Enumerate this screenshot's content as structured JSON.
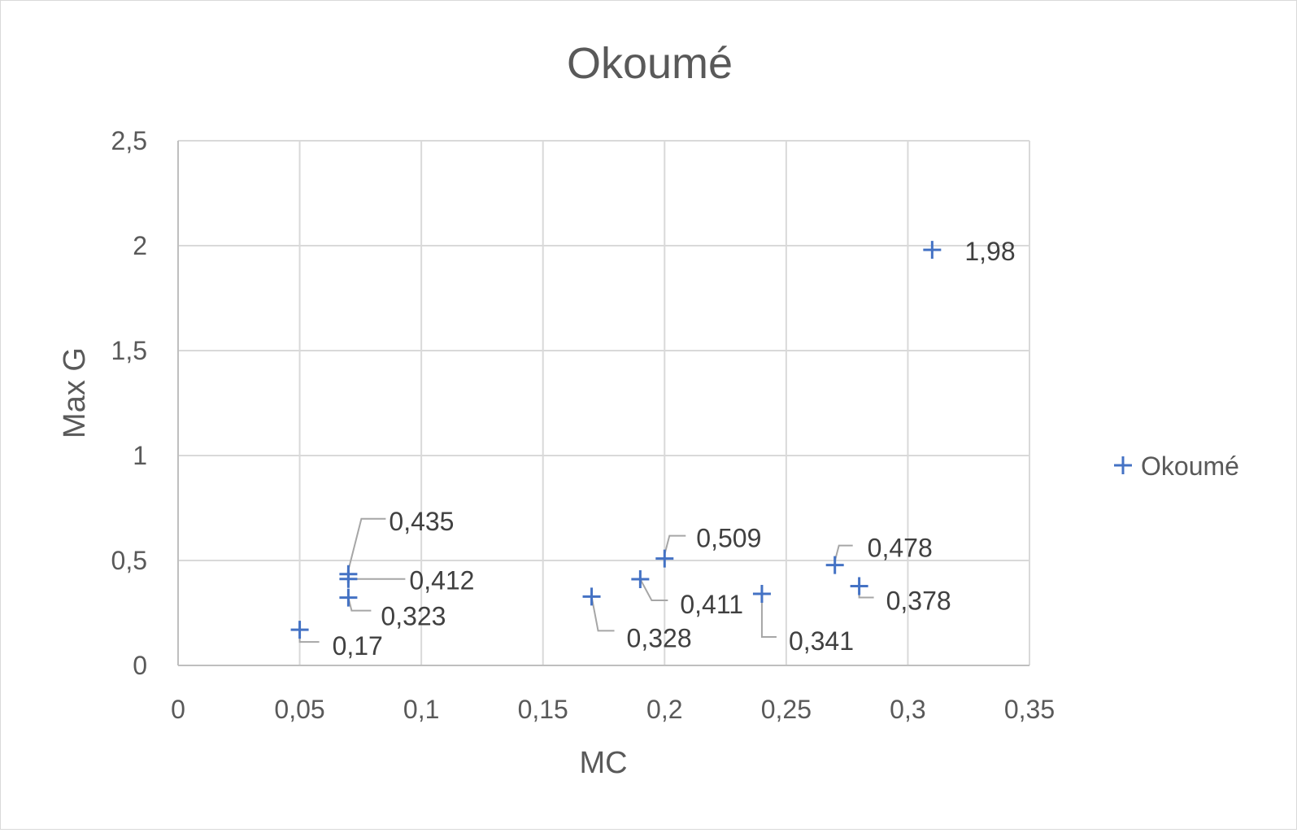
{
  "chart_data": {
    "type": "scatter",
    "title": "Okoumé",
    "xlabel": "MC",
    "ylabel": "Max G",
    "xlim": [
      0,
      0.35
    ],
    "ylim": [
      0,
      2.5
    ],
    "x_ticks": [
      0,
      0.05,
      0.1,
      0.15,
      0.2,
      0.25,
      0.3,
      0.35
    ],
    "y_ticks": [
      0,
      0.5,
      1,
      1.5,
      2,
      2.5
    ],
    "x_tick_labels": [
      "0",
      "0,05",
      "0,1",
      "0,15",
      "0,2",
      "0,25",
      "0,3",
      "0,35"
    ],
    "y_tick_labels": [
      "0",
      "0,5",
      "1",
      "1,5",
      "2",
      "2,5"
    ],
    "grid": true,
    "legend_position": "right",
    "marker": "plus",
    "series_color": "#4472c4",
    "series": [
      {
        "name": "Okoumé",
        "points": [
          {
            "x": 0.05,
            "y": 0.17,
            "label": "0,17"
          },
          {
            "x": 0.07,
            "y": 0.435,
            "label": "0,435"
          },
          {
            "x": 0.07,
            "y": 0.412,
            "label": "0,412"
          },
          {
            "x": 0.07,
            "y": 0.323,
            "label": "0,323"
          },
          {
            "x": 0.17,
            "y": 0.328,
            "label": "0,328"
          },
          {
            "x": 0.19,
            "y": 0.411,
            "label": "0,411"
          },
          {
            "x": 0.2,
            "y": 0.509,
            "label": "0,509"
          },
          {
            "x": 0.24,
            "y": 0.341,
            "label": "0,341"
          },
          {
            "x": 0.27,
            "y": 0.478,
            "label": "0,478"
          },
          {
            "x": 0.28,
            "y": 0.378,
            "label": "0,378"
          },
          {
            "x": 0.31,
            "y": 1.98,
            "label": "1,98"
          }
        ]
      }
    ]
  }
}
